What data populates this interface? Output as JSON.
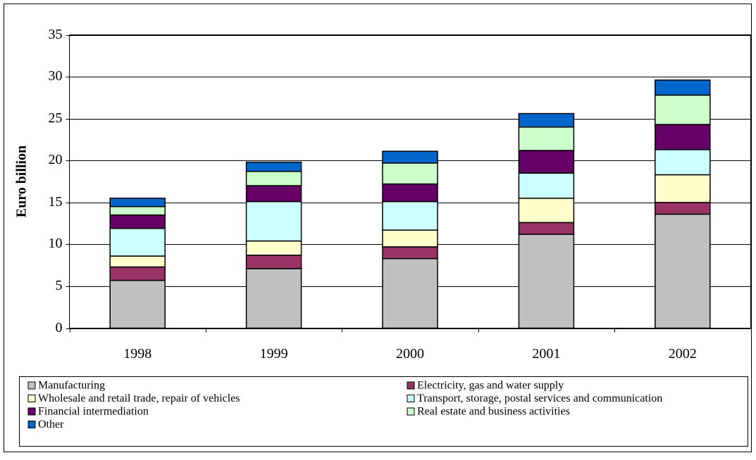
{
  "chart_data": {
    "type": "stacked_bar",
    "y_label": "Euro billion",
    "categories": [
      "1998",
      "1999",
      "2000",
      "2001",
      "2002"
    ],
    "series": [
      {
        "name": "Manufacturing",
        "color": "#c0c0c0",
        "values": [
          5.7,
          7.1,
          8.3,
          11.2,
          13.6
        ]
      },
      {
        "name": "Electricity, gas and water supply",
        "color": "#993366",
        "values": [
          1.6,
          1.6,
          1.4,
          1.4,
          1.4
        ]
      },
      {
        "name": "Wholesale and retail trade, repair of vehicles",
        "color": "#ffffcc",
        "values": [
          1.3,
          1.7,
          2.0,
          2.9,
          3.3
        ]
      },
      {
        "name": "Transport, storage, postal services and communication",
        "color": "#ccffff",
        "values": [
          3.3,
          4.7,
          3.4,
          3.0,
          3.0
        ]
      },
      {
        "name": "Financial intermediation",
        "color": "#660066",
        "values": [
          1.6,
          1.9,
          2.1,
          2.7,
          3.0
        ]
      },
      {
        "name": "Real estate and business activities",
        "color": "#ccffcc",
        "values": [
          1.0,
          1.7,
          2.5,
          2.8,
          3.5
        ]
      },
      {
        "name": "Other",
        "color": "#0066cc",
        "values": [
          1.0,
          1.1,
          1.4,
          1.6,
          1.8
        ]
      }
    ],
    "ylim": [
      0,
      35
    ],
    "yticks": [
      0,
      5,
      10,
      15,
      20,
      25,
      30,
      35
    ],
    "grid": true
  }
}
